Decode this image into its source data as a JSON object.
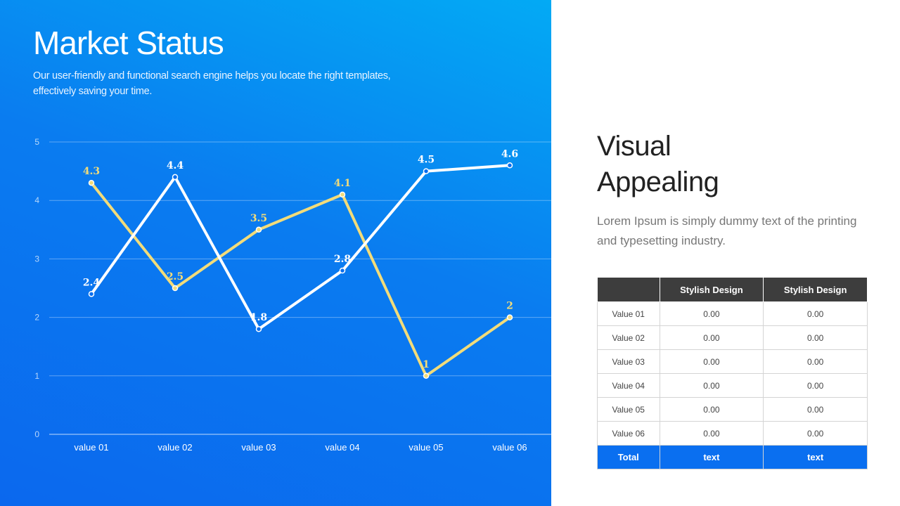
{
  "header": {
    "title": "Market Status",
    "subtitle": "Our user-friendly and functional search engine helps you locate the right templates, effectively saving your time."
  },
  "colors": {
    "series_white": "#ffffff",
    "series_yellow": "#f2dc7a",
    "total_row": "#0a6ff0",
    "header_row": "#3d3d3d"
  },
  "chart_data": {
    "type": "line",
    "categories": [
      "value 01",
      "value 02",
      "value 03",
      "value 04",
      "value 05",
      "value 06"
    ],
    "series": [
      {
        "values": [
          2.4,
          4.4,
          1.8,
          2.8,
          4.5,
          4.6
        ],
        "color": "#ffffff"
      },
      {
        "values": [
          4.3,
          2.5,
          3.5,
          4.1,
          1,
          2
        ],
        "color": "#f2dc7a"
      }
    ],
    "ylim": [
      0,
      5
    ],
    "yticks": [
      0,
      1,
      2,
      3,
      4,
      5
    ],
    "grid": true,
    "data_labels": true
  },
  "side": {
    "title_line1": "Visual",
    "title_line2": "Appealing",
    "description": "Lorem Ipsum is simply dummy text of the printing and typesetting industry."
  },
  "table": {
    "headers": [
      "",
      "Stylish Design",
      "Stylish Design"
    ],
    "rows": [
      [
        "Value 01",
        "0.00",
        "0.00"
      ],
      [
        "Value 02",
        "0.00",
        "0.00"
      ],
      [
        "Value 03",
        "0.00",
        "0.00"
      ],
      [
        "Value 04",
        "0.00",
        "0.00"
      ],
      [
        "Value 05",
        "0.00",
        "0.00"
      ],
      [
        "Value 06",
        "0.00",
        "0.00"
      ]
    ],
    "total": [
      "Total",
      "text",
      "text"
    ]
  }
}
